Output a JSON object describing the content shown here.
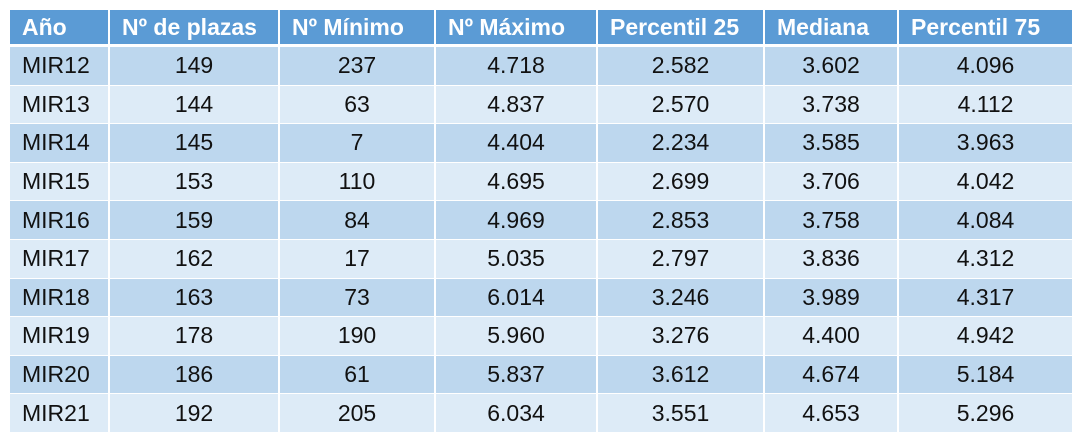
{
  "columns": [
    "Año",
    "Nº de plazas",
    "Nº Mínimo",
    "Nº Máximo",
    "Percentil 25",
    "Mediana",
    "Percentil 75"
  ],
  "rows": [
    [
      "MIR12",
      "149",
      "237",
      "4.718",
      "2.582",
      "3.602",
      "4.096"
    ],
    [
      "MIR13",
      "144",
      "63",
      "4.837",
      "2.570",
      "3.738",
      "4.112"
    ],
    [
      "MIR14",
      "145",
      "7",
      "4.404",
      "2.234",
      "3.585",
      "3.963"
    ],
    [
      "MIR15",
      "153",
      "110",
      "4.695",
      "2.699",
      "3.706",
      "4.042"
    ],
    [
      "MIR16",
      "159",
      "84",
      "4.969",
      "2.853",
      "3.758",
      "4.084"
    ],
    [
      "MIR17",
      "162",
      "17",
      "5.035",
      "2.797",
      "3.836",
      "4.312"
    ],
    [
      "MIR18",
      "163",
      "73",
      "6.014",
      "3.246",
      "3.989",
      "4.317"
    ],
    [
      "MIR19",
      "178",
      "190",
      "5.960",
      "3.276",
      "4.400",
      "4.942"
    ],
    [
      "MIR20",
      "186",
      "61",
      "5.837",
      "3.612",
      "4.674",
      "5.184"
    ],
    [
      "MIR21",
      "192",
      "205",
      "6.034",
      "3.551",
      "4.653",
      "5.296"
    ]
  ],
  "colors": {
    "header_bg": "#5b9bd5",
    "header_text": "#ffffff",
    "row_dark": "#bdd7ee",
    "row_light": "#ddebf7"
  }
}
